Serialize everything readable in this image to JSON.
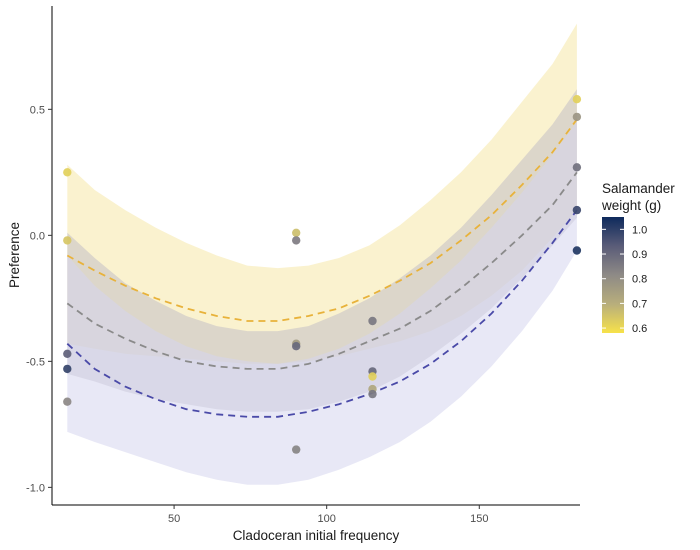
{
  "chart_data": {
    "type": "scatter",
    "xlabel": "Cladoceran initial frequency",
    "ylabel": "Preference",
    "xlim": [
      10,
      183
    ],
    "ylim": [
      -1.07,
      0.91
    ],
    "x_ticks": [
      50,
      100,
      150
    ],
    "y_ticks": [
      -1.0,
      -0.5,
      0.0,
      0.5
    ],
    "x_tick_labels": [
      "50",
      "100",
      "150"
    ],
    "y_tick_labels": [
      "-1.0",
      "-0.5",
      "0.0",
      "0.5"
    ],
    "grid": false,
    "legend": {
      "title_lines": [
        "Salamander",
        "weight (g)"
      ],
      "placement": "right",
      "range": [
        0.58,
        1.05
      ],
      "ticks": [
        0.6,
        0.7,
        0.8,
        0.9,
        1.0
      ],
      "tick_labels": [
        "0.6",
        "0.7",
        "0.8",
        "0.9",
        "1.0"
      ],
      "colors": [
        "#f7e24a",
        "#b8ae7c",
        "#8e8a86",
        "#5a5c78",
        "#0e2a5c"
      ]
    },
    "points": [
      {
        "x": 15,
        "y": 0.25,
        "weight": 0.62
      },
      {
        "x": 15,
        "y": -0.02,
        "weight": 0.64
      },
      {
        "x": 15,
        "y": -0.47,
        "weight": 0.92
      },
      {
        "x": 15,
        "y": -0.53,
        "weight": 0.99
      },
      {
        "x": 15,
        "y": -0.66,
        "weight": 0.82
      },
      {
        "x": 90,
        "y": 0.01,
        "weight": 0.66
      },
      {
        "x": 90,
        "y": -0.02,
        "weight": 0.85
      },
      {
        "x": 90,
        "y": -0.43,
        "weight": 0.76
      },
      {
        "x": 90,
        "y": -0.44,
        "weight": 0.9
      },
      {
        "x": 90,
        "y": -0.85,
        "weight": 0.83
      },
      {
        "x": 115,
        "y": -0.34,
        "weight": 0.86
      },
      {
        "x": 115,
        "y": -0.54,
        "weight": 0.9
      },
      {
        "x": 115,
        "y": -0.56,
        "weight": 0.62
      },
      {
        "x": 115,
        "y": -0.61,
        "weight": 0.72
      },
      {
        "x": 115,
        "y": -0.63,
        "weight": 0.86
      },
      {
        "x": 182,
        "y": 0.54,
        "weight": 0.62
      },
      {
        "x": 182,
        "y": 0.47,
        "weight": 0.78
      },
      {
        "x": 182,
        "y": 0.27,
        "weight": 0.88
      },
      {
        "x": 182,
        "y": 0.1,
        "weight": 0.98
      },
      {
        "x": 182,
        "y": -0.06,
        "weight": 1.02
      }
    ],
    "fits": [
      {
        "color": "#e8b23a",
        "band_color": "#f5e7a8",
        "line_x": [
          15,
          24,
          34,
          44,
          54,
          64,
          74,
          84,
          94,
          104,
          114,
          124,
          134,
          144,
          154,
          164,
          174,
          182
        ],
        "line_y": [
          -0.08,
          -0.14,
          -0.2,
          -0.25,
          -0.29,
          -0.32,
          -0.34,
          -0.34,
          -0.32,
          -0.29,
          -0.24,
          -0.18,
          -0.11,
          -0.02,
          0.08,
          0.2,
          0.33,
          0.46
        ],
        "lower": [
          -0.43,
          -0.45,
          -0.47,
          -0.48,
          -0.49,
          -0.5,
          -0.51,
          -0.51,
          -0.5,
          -0.48,
          -0.45,
          -0.42,
          -0.38,
          -0.32,
          -0.24,
          -0.14,
          -0.01,
          0.1
        ],
        "upper": [
          0.28,
          0.18,
          0.1,
          0.03,
          -0.03,
          -0.08,
          -0.12,
          -0.13,
          -0.12,
          -0.09,
          -0.04,
          0.04,
          0.14,
          0.25,
          0.38,
          0.53,
          0.68,
          0.84
        ]
      },
      {
        "color": "#8a8a8a",
        "band_color": "#c2c0c6",
        "line_x": [
          15,
          24,
          34,
          44,
          54,
          64,
          74,
          84,
          94,
          104,
          114,
          124,
          134,
          144,
          154,
          164,
          174,
          182
        ],
        "line_y": [
          -0.27,
          -0.35,
          -0.41,
          -0.46,
          -0.5,
          -0.52,
          -0.53,
          -0.53,
          -0.51,
          -0.47,
          -0.42,
          -0.37,
          -0.3,
          -0.21,
          -0.11,
          0.0,
          0.12,
          0.25
        ],
        "lower": [
          -0.55,
          -0.58,
          -0.62,
          -0.65,
          -0.67,
          -0.69,
          -0.7,
          -0.7,
          -0.69,
          -0.66,
          -0.62,
          -0.56,
          -0.48,
          -0.39,
          -0.29,
          -0.17,
          -0.04,
          0.07
        ],
        "upper": [
          0.01,
          -0.09,
          -0.19,
          -0.26,
          -0.32,
          -0.36,
          -0.38,
          -0.38,
          -0.36,
          -0.31,
          -0.25,
          -0.17,
          -0.08,
          0.03,
          0.16,
          0.3,
          0.44,
          0.58
        ]
      },
      {
        "color": "#4a4aa8",
        "band_color": "#d6d6ee",
        "line_x": [
          15,
          24,
          34,
          44,
          54,
          64,
          74,
          84,
          94,
          104,
          114,
          124,
          134,
          144,
          154,
          164,
          174,
          182
        ],
        "line_y": [
          -0.43,
          -0.53,
          -0.6,
          -0.65,
          -0.69,
          -0.71,
          -0.72,
          -0.72,
          -0.7,
          -0.67,
          -0.63,
          -0.58,
          -0.51,
          -0.42,
          -0.31,
          -0.18,
          -0.03,
          0.1
        ],
        "lower": [
          -0.78,
          -0.82,
          -0.86,
          -0.9,
          -0.94,
          -0.97,
          -0.99,
          -0.99,
          -0.97,
          -0.93,
          -0.88,
          -0.82,
          -0.74,
          -0.64,
          -0.52,
          -0.38,
          -0.22,
          -0.06
        ],
        "upper": [
          -0.08,
          -0.2,
          -0.3,
          -0.38,
          -0.44,
          -0.48,
          -0.5,
          -0.51,
          -0.49,
          -0.45,
          -0.39,
          -0.31,
          -0.21,
          -0.1,
          0.03,
          0.17,
          0.32,
          0.45
        ]
      }
    ]
  }
}
